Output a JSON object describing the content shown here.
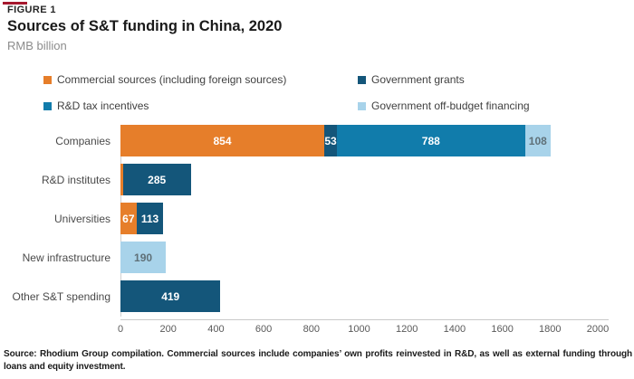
{
  "header": {
    "figure_label": "FIGURE 1",
    "title": "Sources of S&T funding in China, 2020",
    "subtitle": "RMB billion"
  },
  "accent": {
    "dash_color": "#A6192E"
  },
  "legend": {
    "items": [
      {
        "label": "Commercial sources (including foreign sources)",
        "color": "#E67E2A"
      },
      {
        "label": "Government grants",
        "color": "#14567A"
      },
      {
        "label": "R&D tax incentives",
        "color": "#117CAB"
      },
      {
        "label": "Government off-budget financing",
        "color": "#A8D3EA"
      }
    ]
  },
  "chart_data": {
    "type": "bar",
    "orientation": "horizontal_stacked",
    "title": "Sources of S&T funding in China, 2020",
    "unit": "RMB billion",
    "categories": [
      "Companies",
      "R&D institutes",
      "Universities",
      "New infrastructure",
      "Other S&T spending"
    ],
    "series": [
      {
        "name": "Commercial sources (including foreign sources)",
        "color": "#E67E2A",
        "label_color": "#FFFFFF",
        "values": [
          854,
          10,
          67,
          0,
          0
        ],
        "labels": [
          "854",
          "",
          "67",
          "",
          ""
        ]
      },
      {
        "name": "Government grants",
        "color": "#14567A",
        "label_color": "#FFFFFF",
        "values": [
          53,
          285,
          113,
          0,
          419
        ],
        "labels": [
          "53",
          "285",
          "113",
          "",
          "419"
        ]
      },
      {
        "name": "R&D tax incentives",
        "color": "#117CAB",
        "label_color": "#FFFFFF",
        "values": [
          788,
          0,
          0,
          0,
          0
        ],
        "labels": [
          "788",
          "",
          "",
          "",
          ""
        ]
      },
      {
        "name": "Government off-budget financing",
        "color": "#A8D3EA",
        "label_color": "#5F7078",
        "values": [
          108,
          0,
          0,
          190,
          0
        ],
        "labels": [
          "108",
          "",
          "",
          "190",
          ""
        ]
      }
    ],
    "xlim": [
      0,
      2000
    ],
    "xticks": [
      0,
      200,
      400,
      600,
      800,
      1000,
      1200,
      1400,
      1600,
      1800,
      2000
    ],
    "grid": false,
    "legend_position": "top"
  },
  "footer": {
    "source_note": "Source: Rhodium Group compilation. Commercial sources include companies’ own profits reinvested in R&D, as well as external funding through loans and equity investment."
  }
}
